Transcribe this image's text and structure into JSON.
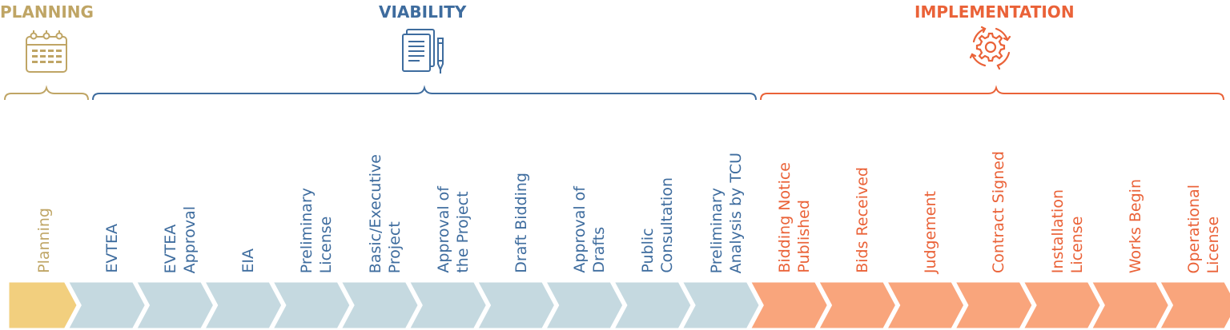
{
  "phases": {
    "planning": {
      "title": "PLANNING",
      "icon": "calendar-icon",
      "color": "#BFA565"
    },
    "viability": {
      "title": "VIABILITY",
      "icon": "document-pen-icon",
      "color": "#3E6C9E"
    },
    "implementation": {
      "title": "IMPLEMENTATION",
      "icon": "gear-cycle-icon",
      "color": "#EA6238"
    }
  },
  "colors": {
    "planning_chevron": "#F2CF7E",
    "viability_chevron": "#C5D9E0",
    "implementation_chevron": "#F9A57C"
  },
  "steps": [
    {
      "label": "Planning",
      "phase": "planning"
    },
    {
      "label": "EVTEA",
      "phase": "viability"
    },
    {
      "label": "EVTEA\nApproval",
      "phase": "viability"
    },
    {
      "label": "EIA",
      "phase": "viability"
    },
    {
      "label": "Preliminary\nLicense",
      "phase": "viability"
    },
    {
      "label": "Basic/Executive\nProject",
      "phase": "viability"
    },
    {
      "label": "Approval of\nthe Project",
      "phase": "viability"
    },
    {
      "label": "Draft Bidding",
      "phase": "viability"
    },
    {
      "label": "Approval of\nDrafts",
      "phase": "viability"
    },
    {
      "label": "Public\nConsultation",
      "phase": "viability"
    },
    {
      "label": "Preliminary\nAnalysis by TCU",
      "phase": "viability"
    },
    {
      "label": "Bidding Notice\nPublished",
      "phase": "implementation"
    },
    {
      "label": "Bids Received",
      "phase": "implementation"
    },
    {
      "label": "Judgement",
      "phase": "implementation"
    },
    {
      "label": "Contract Signed",
      "phase": "implementation"
    },
    {
      "label": "Installation\nLicense",
      "phase": "implementation"
    },
    {
      "label": "Works Begin",
      "phase": "implementation"
    },
    {
      "label": "Operational\nLicense",
      "phase": "implementation"
    }
  ]
}
